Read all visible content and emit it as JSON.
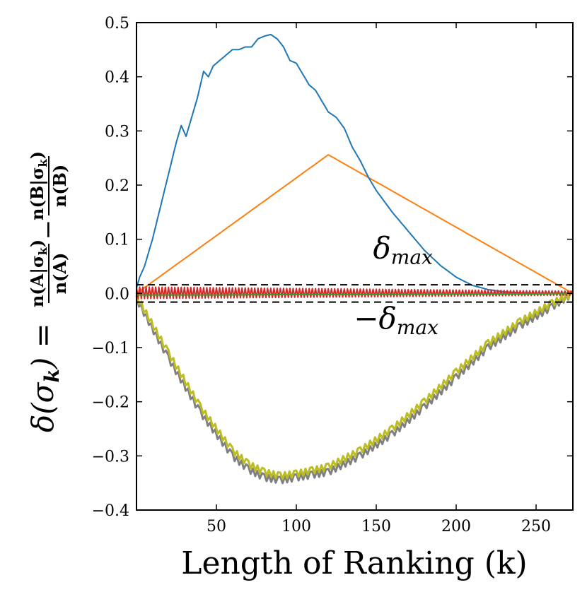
{
  "chart_data": {
    "type": "line",
    "xlabel": "Length of Ranking (k)",
    "ylabel": {
      "lhs": "δ(σ",
      "lhs_sub": "k",
      "equals": ") =",
      "frac1_num": "n(A|σ",
      "frac1_num_sub": "k",
      "frac1_num_close": ")",
      "frac1_den": "n(A)",
      "minus": "−",
      "frac2_num": "n(B|σ",
      "frac2_num_sub": "k",
      "frac2_num_close": ")",
      "frac2_den": "n(B)"
    },
    "xlim": [
      0,
      273
    ],
    "ylim": [
      -0.4,
      0.5
    ],
    "xticks": [
      50,
      100,
      150,
      200,
      250
    ],
    "xtick_labels": [
      "50",
      "100",
      "150",
      "200",
      "250"
    ],
    "yticks": [
      -0.4,
      -0.3,
      -0.2,
      -0.1,
      0.0,
      0.1,
      0.2,
      0.3,
      0.4,
      0.5
    ],
    "ytick_labels": [
      "−0.4",
      "−0.3",
      "−0.2",
      "−0.1",
      "0.0",
      "0.1",
      "0.2",
      "0.3",
      "0.4",
      "0.5"
    ],
    "threshold": 0.016,
    "annotations": [
      {
        "text": "δ",
        "sub": "max",
        "x": 148,
        "y": 0.065
      },
      {
        "text": "−δ",
        "sub": "max",
        "x": 136,
        "y": -0.065
      }
    ],
    "series": [
      {
        "name": "blue",
        "color": "#1f77b4",
        "x": [
          0,
          2,
          5,
          10,
          15,
          20,
          25,
          28,
          31,
          35,
          38,
          42,
          45,
          48,
          52,
          56,
          60,
          64,
          68,
          72,
          76,
          80,
          84,
          88,
          92,
          96,
          100,
          104,
          108,
          112,
          116,
          120,
          125,
          130,
          135,
          140,
          145,
          150,
          160,
          170,
          180,
          190,
          200,
          210,
          220,
          230,
          240,
          250,
          260,
          273
        ],
        "y": [
          0.01,
          0.03,
          0.05,
          0.1,
          0.16,
          0.22,
          0.28,
          0.31,
          0.29,
          0.33,
          0.36,
          0.41,
          0.4,
          0.42,
          0.43,
          0.44,
          0.45,
          0.45,
          0.455,
          0.455,
          0.47,
          0.475,
          0.478,
          0.47,
          0.455,
          0.43,
          0.425,
          0.405,
          0.385,
          0.375,
          0.355,
          0.335,
          0.325,
          0.305,
          0.27,
          0.245,
          0.215,
          0.19,
          0.15,
          0.115,
          0.08,
          0.052,
          0.03,
          0.015,
          0.007,
          0.003,
          0.001,
          0.0,
          0.0,
          0.0
        ]
      },
      {
        "name": "orange",
        "color": "#ff7f0e",
        "x": [
          0,
          120,
          273
        ],
        "y": [
          0.0,
          0.256,
          0.0
        ]
      },
      {
        "name": "gray",
        "color": "#808080",
        "x": [
          0,
          20,
          40,
          60,
          70,
          80,
          90,
          100,
          110,
          120,
          140,
          160,
          180,
          200,
          220,
          240,
          260,
          273
        ],
        "y": [
          -0.01,
          -0.12,
          -0.22,
          -0.3,
          -0.325,
          -0.34,
          -0.345,
          -0.34,
          -0.335,
          -0.33,
          -0.3,
          -0.26,
          -0.21,
          -0.155,
          -0.1,
          -0.06,
          -0.025,
          0.0
        ]
      },
      {
        "name": "yellow-green",
        "color": "#bcbd22",
        "x": [
          0,
          20,
          40,
          60,
          70,
          80,
          90,
          100,
          110,
          120,
          140,
          160,
          180,
          200,
          220,
          240,
          260,
          273
        ],
        "y": [
          -0.005,
          -0.11,
          -0.21,
          -0.29,
          -0.315,
          -0.33,
          -0.337,
          -0.333,
          -0.327,
          -0.32,
          -0.29,
          -0.25,
          -0.2,
          -0.145,
          -0.092,
          -0.052,
          -0.018,
          0.0
        ]
      },
      {
        "name": "red",
        "color": "#d62728",
        "x": [
          0,
          50,
          100,
          150,
          200,
          250,
          273
        ],
        "y": [
          0.0,
          0.0,
          0.0,
          0.0,
          0.0,
          0.0,
          0.0
        ],
        "oscillation": 0.012
      },
      {
        "name": "green",
        "color": "#2ca02c",
        "x": [
          0,
          50,
          100,
          150,
          200,
          250,
          273
        ],
        "y": [
          -0.003,
          -0.003,
          -0.002,
          -0.002,
          -0.001,
          -0.001,
          0.0
        ]
      }
    ]
  }
}
